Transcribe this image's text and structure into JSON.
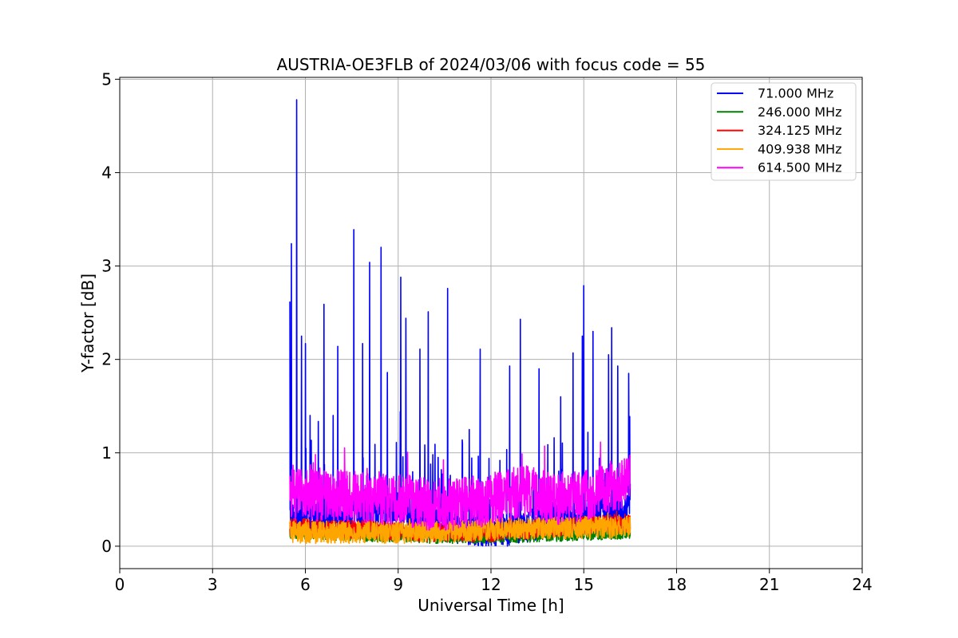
{
  "chart_data": {
    "type": "line",
    "title": "AUSTRIA-OE3FLB of 2024/03/06 with focus code = 55",
    "xlabel": "Universal Time [h]",
    "ylabel": "Y-factor [dB]",
    "xlim": [
      0,
      24
    ],
    "ylim": [
      -0.24,
      5.02
    ],
    "x_ticks": [
      0,
      3,
      6,
      9,
      12,
      15,
      18,
      21,
      24
    ],
    "y_ticks": [
      0,
      1,
      2,
      3,
      4,
      5
    ],
    "grid": true,
    "legend_position": "top-right",
    "series": [
      {
        "name": " 71.000 MHz",
        "color": "#0000ff",
        "x_range": [
          5.5,
          16.5
        ],
        "baseline": [
          [
            5.5,
            0.3
          ],
          [
            7,
            0.35
          ],
          [
            9,
            0.4
          ],
          [
            10,
            0.3
          ],
          [
            11,
            0.2
          ],
          [
            12,
            0.15
          ],
          [
            13,
            0.2
          ],
          [
            14,
            0.3
          ],
          [
            15,
            0.35
          ],
          [
            16.5,
            0.4
          ]
        ],
        "peaks": [
          [
            5.55,
            3.24
          ],
          [
            5.5,
            2.62
          ],
          [
            5.72,
            4.78
          ],
          [
            5.88,
            2.25
          ],
          [
            6.0,
            2.17
          ],
          [
            6.15,
            1.4
          ],
          [
            6.6,
            2.59
          ],
          [
            6.9,
            1.4
          ],
          [
            7.05,
            2.14
          ],
          [
            7.57,
            3.39
          ],
          [
            7.85,
            2.17
          ],
          [
            8.08,
            3.04
          ],
          [
            8.45,
            3.2
          ],
          [
            8.65,
            1.86
          ],
          [
            9.08,
            2.88
          ],
          [
            9.25,
            2.44
          ],
          [
            9.7,
            2.11
          ],
          [
            9.97,
            2.51
          ],
          [
            10.6,
            2.76
          ],
          [
            11.3,
            1.25
          ],
          [
            11.65,
            2.11
          ],
          [
            12.6,
            1.93
          ],
          [
            12.95,
            2.43
          ],
          [
            13.55,
            1.9
          ],
          [
            14.25,
            1.6
          ],
          [
            14.65,
            2.07
          ],
          [
            14.95,
            2.25
          ],
          [
            15.0,
            2.79
          ],
          [
            15.3,
            2.3
          ],
          [
            15.8,
            2.05
          ],
          [
            15.9,
            2.34
          ],
          [
            16.1,
            1.93
          ],
          [
            16.45,
            1.85
          ]
        ]
      },
      {
        "name": "246.000 MHz",
        "color": "#008000",
        "x_range": [
          5.5,
          16.5
        ],
        "baseline": [
          [
            5.5,
            0.15
          ],
          [
            8,
            0.12
          ],
          [
            10,
            0.1
          ],
          [
            12,
            0.1
          ],
          [
            14,
            0.12
          ],
          [
            16.5,
            0.15
          ]
        ]
      },
      {
        "name": "324.125 MHz",
        "color": "#ff0000",
        "x_range": [
          5.5,
          16.5
        ],
        "baseline": [
          [
            5.5,
            0.2
          ],
          [
            8,
            0.18
          ],
          [
            10,
            0.15
          ],
          [
            12,
            0.15
          ],
          [
            14,
            0.2
          ],
          [
            16.5,
            0.25
          ]
        ]
      },
      {
        "name": "409.938 MHz",
        "color": "#ffa500",
        "x_range": [
          5.5,
          16.5
        ],
        "baseline": [
          [
            5.5,
            0.15
          ],
          [
            8,
            0.15
          ],
          [
            10,
            0.15
          ],
          [
            12,
            0.18
          ],
          [
            14,
            0.2
          ],
          [
            16.5,
            0.2
          ]
        ]
      },
      {
        "name": "614.500 MHz",
        "color": "#ff00ff",
        "x_range": [
          5.5,
          16.5
        ],
        "baseline": [
          [
            5.5,
            0.55
          ],
          [
            7,
            0.55
          ],
          [
            8,
            0.5
          ],
          [
            9,
            0.5
          ],
          [
            10,
            0.45
          ],
          [
            11,
            0.45
          ],
          [
            12,
            0.5
          ],
          [
            13,
            0.6
          ],
          [
            14,
            0.5
          ],
          [
            15,
            0.55
          ],
          [
            16.5,
            0.7
          ]
        ]
      }
    ]
  }
}
